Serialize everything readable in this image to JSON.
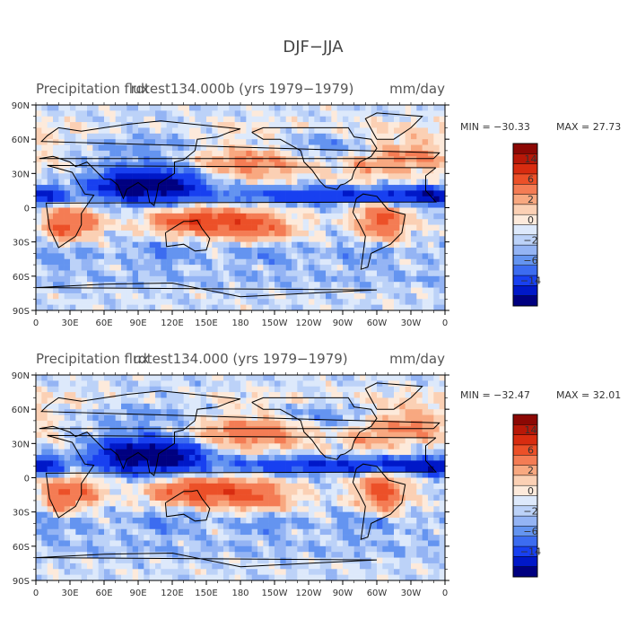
{
  "figure_title": "DJF−JJA",
  "colors": {
    "levels": [
      "#000080",
      "#0018c8",
      "#1840f0",
      "#3c6cf0",
      "#6494f0",
      "#94b4f4",
      "#bcd2f8",
      "#dde9fb",
      "#fdeadb",
      "#fbd0b4",
      "#f8a880",
      "#f47c54",
      "#ec5028",
      "#d82c10",
      "#b81808",
      "#8c0804"
    ],
    "land_outline": "#000000"
  },
  "chart_data": [
    {
      "type": "heatmap",
      "title_left": "Precipitation flux",
      "title_center": "rdtest134.000b (yrs 1979−1979)",
      "units": "mm/day",
      "min_label": "MIN = −30.33",
      "max_label": "MAX =  27.73",
      "min": -30.33,
      "max": 27.73,
      "x_ticks": [
        "0",
        "30E",
        "60E",
        "90E",
        "120E",
        "150E",
        "180",
        "150W",
        "120W",
        "90W",
        "60W",
        "30W",
        "0"
      ],
      "y_ticks": [
        "90N",
        "60N",
        "30N",
        "0",
        "30S",
        "60S",
        "90S"
      ],
      "colorbar_labels": [
        "14",
        "6",
        "2",
        "0",
        "−2",
        "−6",
        "−14"
      ]
    },
    {
      "type": "heatmap",
      "title_left": "Precipitation flux",
      "title_center": "rdtest134.000 (yrs 1979−1979)",
      "units": "mm/day",
      "min_label": "MIN = −32.47",
      "max_label": "MAX =  32.01",
      "min": -32.47,
      "max": 32.01,
      "x_ticks": [
        "0",
        "30E",
        "60E",
        "90E",
        "120E",
        "150E",
        "180",
        "150W",
        "120W",
        "90W",
        "60W",
        "30W",
        "0"
      ],
      "y_ticks": [
        "90N",
        "60N",
        "30N",
        "0",
        "30S",
        "60S",
        "90S"
      ],
      "colorbar_labels": [
        "14",
        "6",
        "2",
        "0",
        "−2",
        "−6",
        "−14"
      ]
    }
  ]
}
